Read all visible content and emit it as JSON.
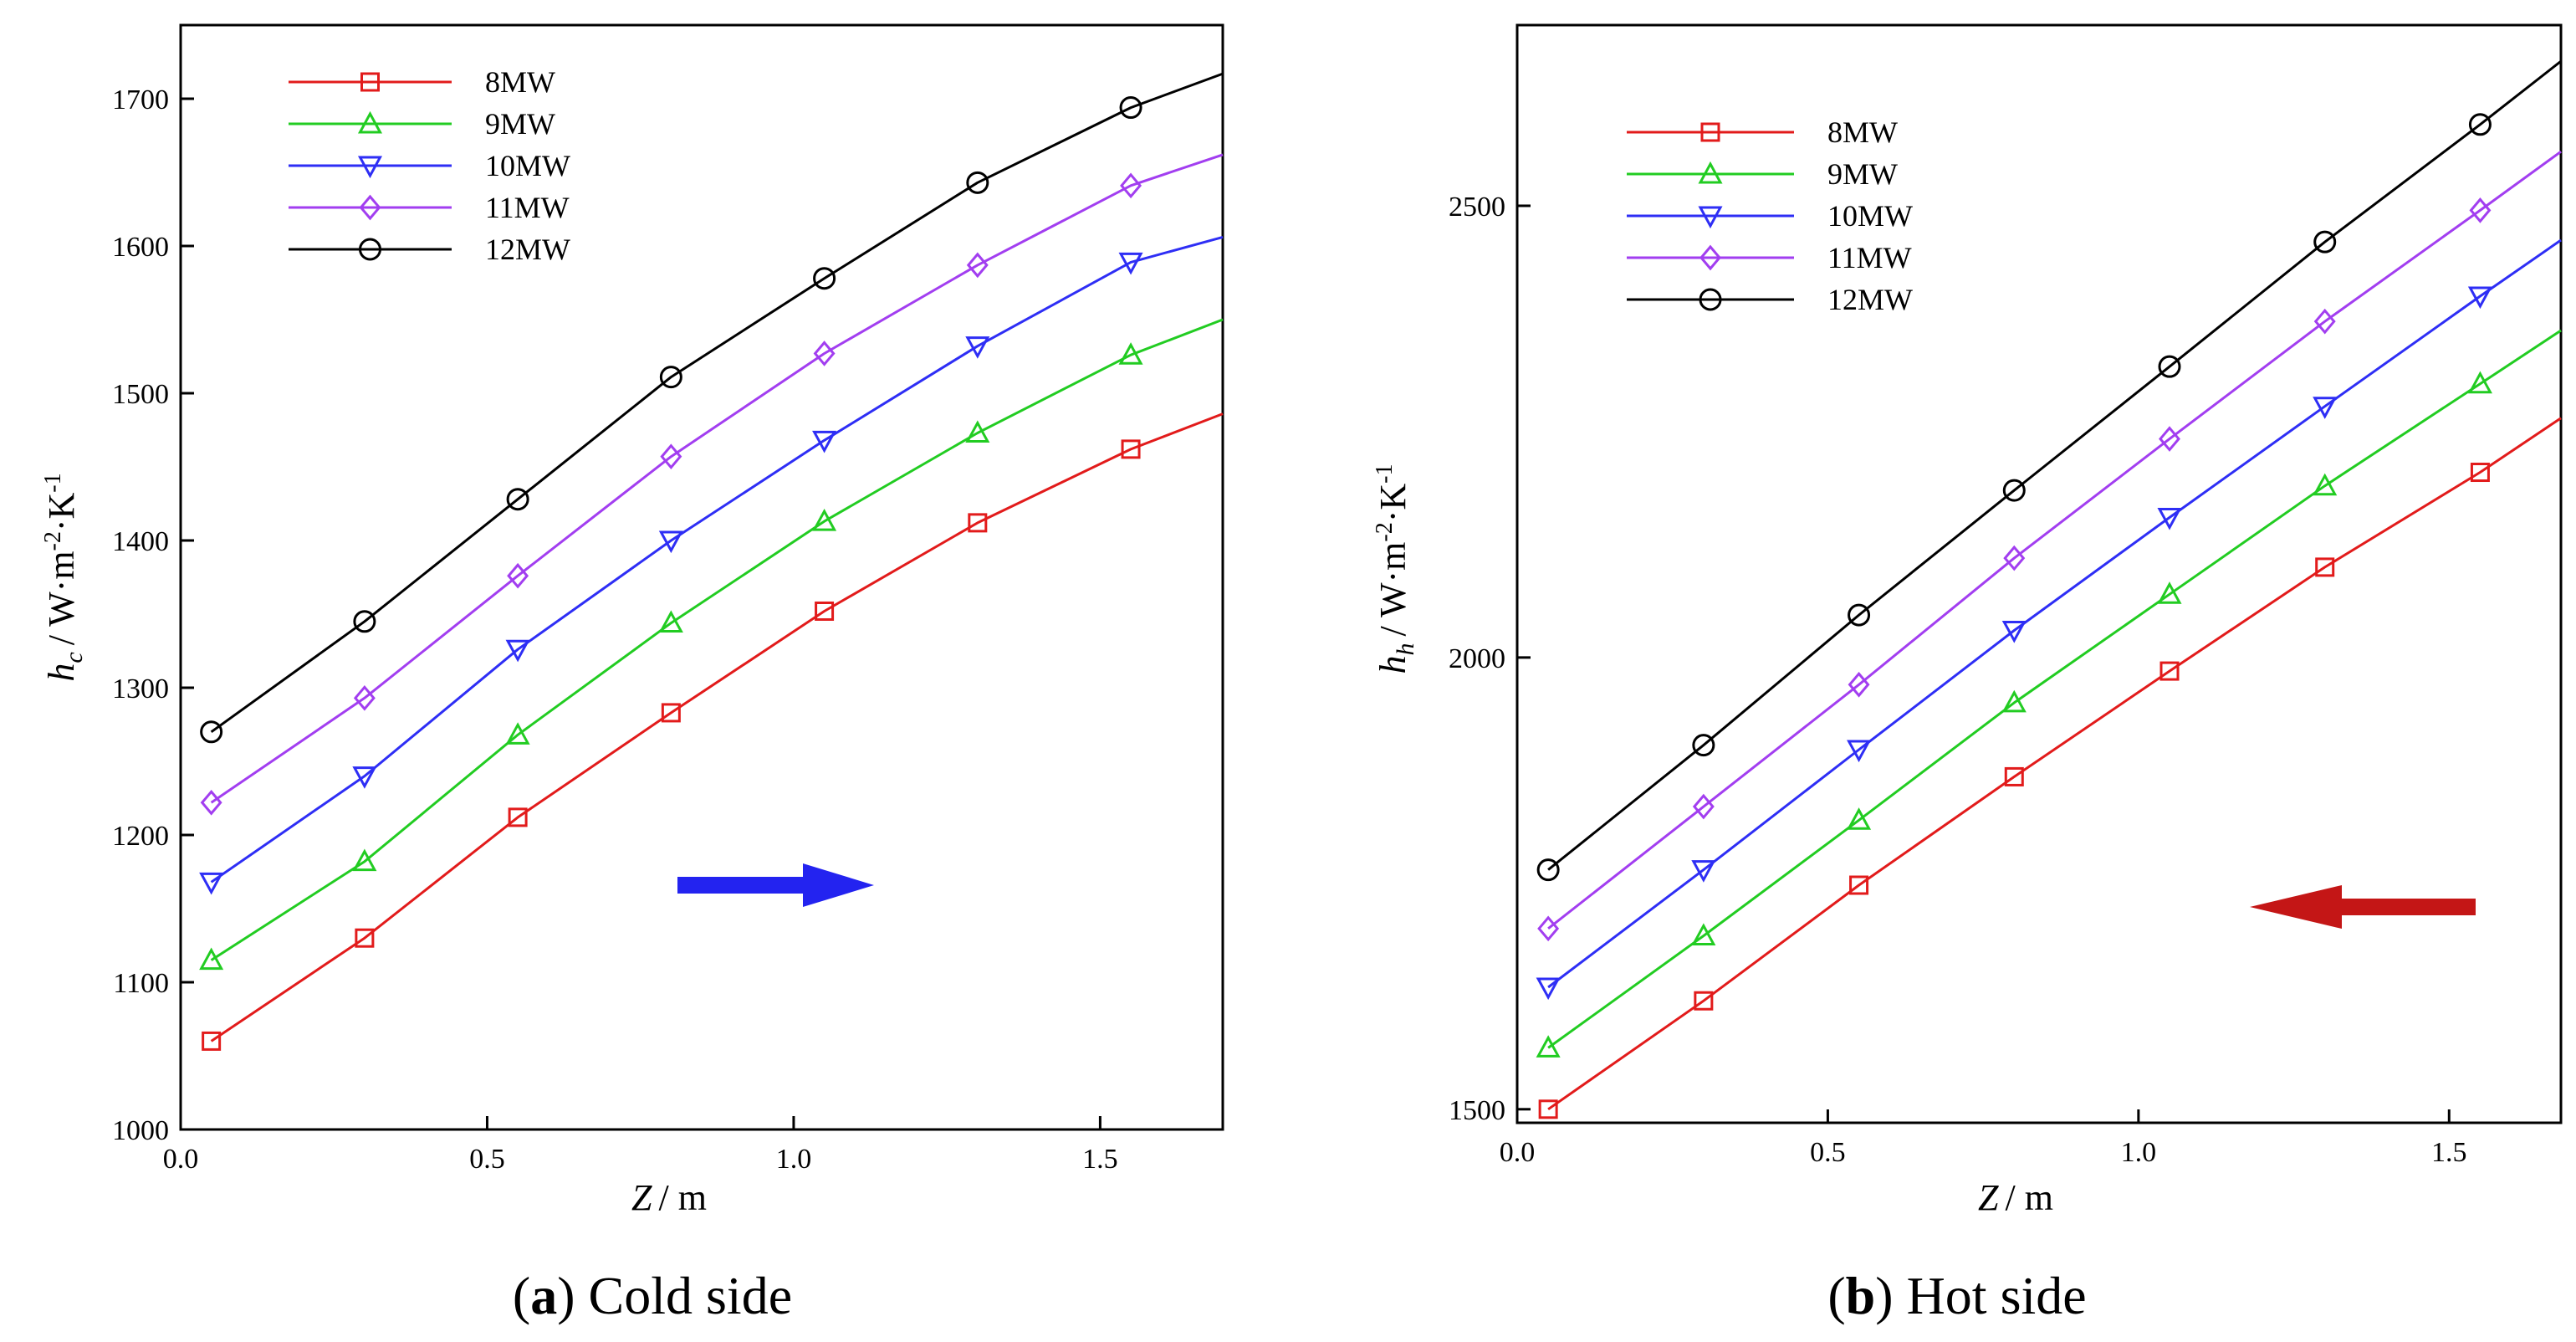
{
  "chart_data": [
    {
      "type": "line",
      "panel": "a",
      "caption_letter": "a",
      "caption_text": "Cold side",
      "ylabel_symbol": "h",
      "ylabel_sub": "c",
      "ylabel_rest": "/ W·m",
      "ylabel_exp1": "-2",
      "ylabel_mid": "·K",
      "ylabel_exp2": "-1",
      "xlabel_symbol": "Z",
      "xlabel_rest": "/ m",
      "xlim": [
        0.0,
        1.7
      ],
      "ylim": [
        1000,
        1750
      ],
      "xticks": [
        0.0,
        0.5,
        1.0,
        1.5
      ],
      "xtick_labels": [
        "0.0",
        "0.5",
        "1.0",
        "1.5"
      ],
      "yticks": [
        1000,
        1100,
        1200,
        1300,
        1400,
        1500,
        1600,
        1700
      ],
      "ytick_labels": [
        "1000",
        "1100",
        "1200",
        "1300",
        "1400",
        "1500",
        "1600",
        "1700"
      ],
      "arrow_direction": "right",
      "arrow_color": "#2323f0",
      "legend_position": "top-left",
      "series": [
        {
          "name": "8MW",
          "color": "#e21b1b",
          "marker": "square",
          "x": [
            0.05,
            0.3,
            0.55,
            0.8,
            1.05,
            1.3,
            1.55,
            1.7
          ],
          "y": [
            1060,
            1130,
            1212,
            1283,
            1352,
            1412,
            1462,
            1486
          ]
        },
        {
          "name": "9MW",
          "color": "#22cc22",
          "marker": "triangle-up",
          "x": [
            0.05,
            0.3,
            0.55,
            0.8,
            1.05,
            1.3,
            1.55,
            1.7
          ],
          "y": [
            1115,
            1182,
            1268,
            1344,
            1413,
            1473,
            1526,
            1550
          ]
        },
        {
          "name": "10MW",
          "color": "#2e2ef5",
          "marker": "triangle-down",
          "x": [
            0.05,
            0.3,
            0.55,
            0.8,
            1.05,
            1.3,
            1.55,
            1.7
          ],
          "y": [
            1168,
            1240,
            1326,
            1400,
            1468,
            1532,
            1589,
            1606
          ]
        },
        {
          "name": "11MW",
          "color": "#a23ef0",
          "marker": "diamond",
          "x": [
            0.05,
            0.3,
            0.55,
            0.8,
            1.05,
            1.3,
            1.55,
            1.7
          ],
          "y": [
            1222,
            1293,
            1376,
            1457,
            1527,
            1587,
            1641,
            1662
          ]
        },
        {
          "name": "12MW",
          "color": "#000000",
          "marker": "circle",
          "x": [
            0.05,
            0.3,
            0.55,
            0.8,
            1.05,
            1.3,
            1.55,
            1.7
          ],
          "y": [
            1270,
            1345,
            1428,
            1511,
            1578,
            1643,
            1694,
            1717
          ]
        }
      ]
    },
    {
      "type": "line",
      "panel": "b",
      "caption_letter": "b",
      "caption_text": "Hot side",
      "ylabel_symbol": "h",
      "ylabel_sub": "h",
      "ylabel_rest": "/ W·m",
      "ylabel_exp1": "-2",
      "ylabel_mid": "·K",
      "ylabel_exp2": "-1",
      "xlabel_symbol": "Z",
      "xlabel_rest": "/ m",
      "xlim": [
        0.0,
        1.68
      ],
      "ylim": [
        1485,
        2700
      ],
      "xticks": [
        0.0,
        0.5,
        1.0,
        1.5
      ],
      "xtick_labels": [
        "0.0",
        "0.5",
        "1.0",
        "1.5"
      ],
      "yticks": [
        1500,
        2000,
        2500
      ],
      "ytick_labels": [
        "1500",
        "2000",
        "2500"
      ],
      "arrow_direction": "left",
      "arrow_color": "#c41616",
      "legend_position": "top-left",
      "series": [
        {
          "name": "8MW",
          "color": "#e21b1b",
          "marker": "square",
          "x": [
            0.05,
            0.3,
            0.55,
            0.8,
            1.05,
            1.3,
            1.55,
            1.68
          ],
          "y": [
            1500,
            1620,
            1748,
            1868,
            1985,
            2100,
            2205,
            2265
          ]
        },
        {
          "name": "9MW",
          "color": "#22cc22",
          "marker": "triangle-up",
          "x": [
            0.05,
            0.3,
            0.55,
            0.8,
            1.05,
            1.3,
            1.55,
            1.68
          ],
          "y": [
            1568,
            1692,
            1820,
            1950,
            2070,
            2190,
            2303,
            2362
          ]
        },
        {
          "name": "10MW",
          "color": "#2e2ef5",
          "marker": "triangle-down",
          "x": [
            0.05,
            0.3,
            0.55,
            0.8,
            1.05,
            1.3,
            1.55,
            1.68
          ],
          "y": [
            1635,
            1765,
            1898,
            2030,
            2155,
            2278,
            2400,
            2462
          ]
        },
        {
          "name": "11MW",
          "color": "#a23ef0",
          "marker": "diamond",
          "x": [
            0.05,
            0.3,
            0.55,
            0.8,
            1.05,
            1.3,
            1.55,
            1.68
          ],
          "y": [
            1700,
            1835,
            1970,
            2110,
            2242,
            2372,
            2495,
            2560
          ]
        },
        {
          "name": "12MW",
          "color": "#000000",
          "marker": "circle",
          "x": [
            0.05,
            0.3,
            0.55,
            0.8,
            1.05,
            1.3,
            1.55,
            1.68
          ],
          "y": [
            1765,
            1903,
            2047,
            2185,
            2322,
            2460,
            2590,
            2660
          ]
        }
      ]
    }
  ]
}
